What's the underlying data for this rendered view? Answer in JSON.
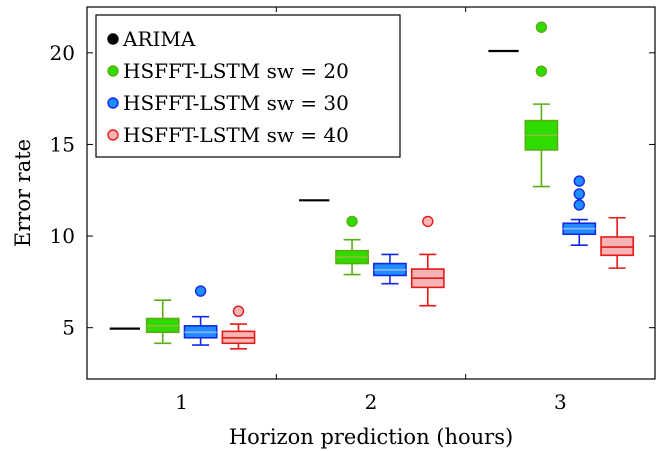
{
  "chart_data": {
    "type": "box",
    "xlabel": "Horizon prediction (hours)",
    "ylabel": "Error rate",
    "categories": [
      "1",
      "2",
      "3"
    ],
    "xlim": [
      0.5,
      3.5
    ],
    "ylim": [
      2.2,
      22.5
    ],
    "yticks": [
      5,
      10,
      15,
      20
    ],
    "legend_position": "top-left",
    "series": [
      {
        "name": "ARIMA",
        "kind": "line",
        "stroke": "#000000",
        "fill": "#000000",
        "values": [
          4.95,
          11.95,
          20.1
        ]
      },
      {
        "name": "HSFFT-LSTM sw = 20",
        "kind": "box",
        "stroke": "#5aad13",
        "fill": "#2edc00",
        "median_color": "#8fbf3a",
        "boxes": [
          {
            "category": "1",
            "min": 4.15,
            "q1": 4.75,
            "median": 5.1,
            "q3": 5.5,
            "max": 6.5,
            "outliers": []
          },
          {
            "category": "2",
            "min": 7.9,
            "q1": 8.5,
            "median": 8.85,
            "q3": 9.2,
            "max": 9.8,
            "outliers": [
              10.8
            ]
          },
          {
            "category": "3",
            "min": 12.7,
            "q1": 14.7,
            "median": 15.5,
            "q3": 16.3,
            "max": 17.2,
            "outliers": [
              19.0,
              21.4
            ]
          }
        ]
      },
      {
        "name": "HSFFT-LSTM sw = 30",
        "kind": "box",
        "stroke": "#1429e6",
        "fill": "#1f8cff",
        "median_color": "#8fb4ff",
        "boxes": [
          {
            "category": "1",
            "min": 4.05,
            "q1": 4.45,
            "median": 4.75,
            "q3": 5.1,
            "max": 5.6,
            "outliers": [
              7.0
            ]
          },
          {
            "category": "2",
            "min": 7.4,
            "q1": 7.85,
            "median": 8.15,
            "q3": 8.5,
            "max": 9.0,
            "outliers": []
          },
          {
            "category": "3",
            "min": 9.5,
            "q1": 10.1,
            "median": 10.4,
            "q3": 10.7,
            "max": 10.9,
            "outliers": [
              11.7,
              12.3,
              13.0
            ]
          }
        ]
      },
      {
        "name": "HSFFT-LSTM sw = 40",
        "kind": "box",
        "stroke": "#e61919",
        "fill": "#f6b4b4",
        "median_color": "#e61919",
        "boxes": [
          {
            "category": "1",
            "min": 3.85,
            "q1": 4.15,
            "median": 4.45,
            "q3": 4.8,
            "max": 5.2,
            "outliers": [
              5.9
            ]
          },
          {
            "category": "2",
            "min": 6.2,
            "q1": 7.2,
            "median": 7.7,
            "q3": 8.2,
            "max": 9.0,
            "outliers": [
              10.8
            ]
          },
          {
            "category": "3",
            "min": 8.25,
            "q1": 8.95,
            "median": 9.4,
            "q3": 9.95,
            "max": 11.0,
            "outliers": []
          }
        ]
      }
    ]
  }
}
